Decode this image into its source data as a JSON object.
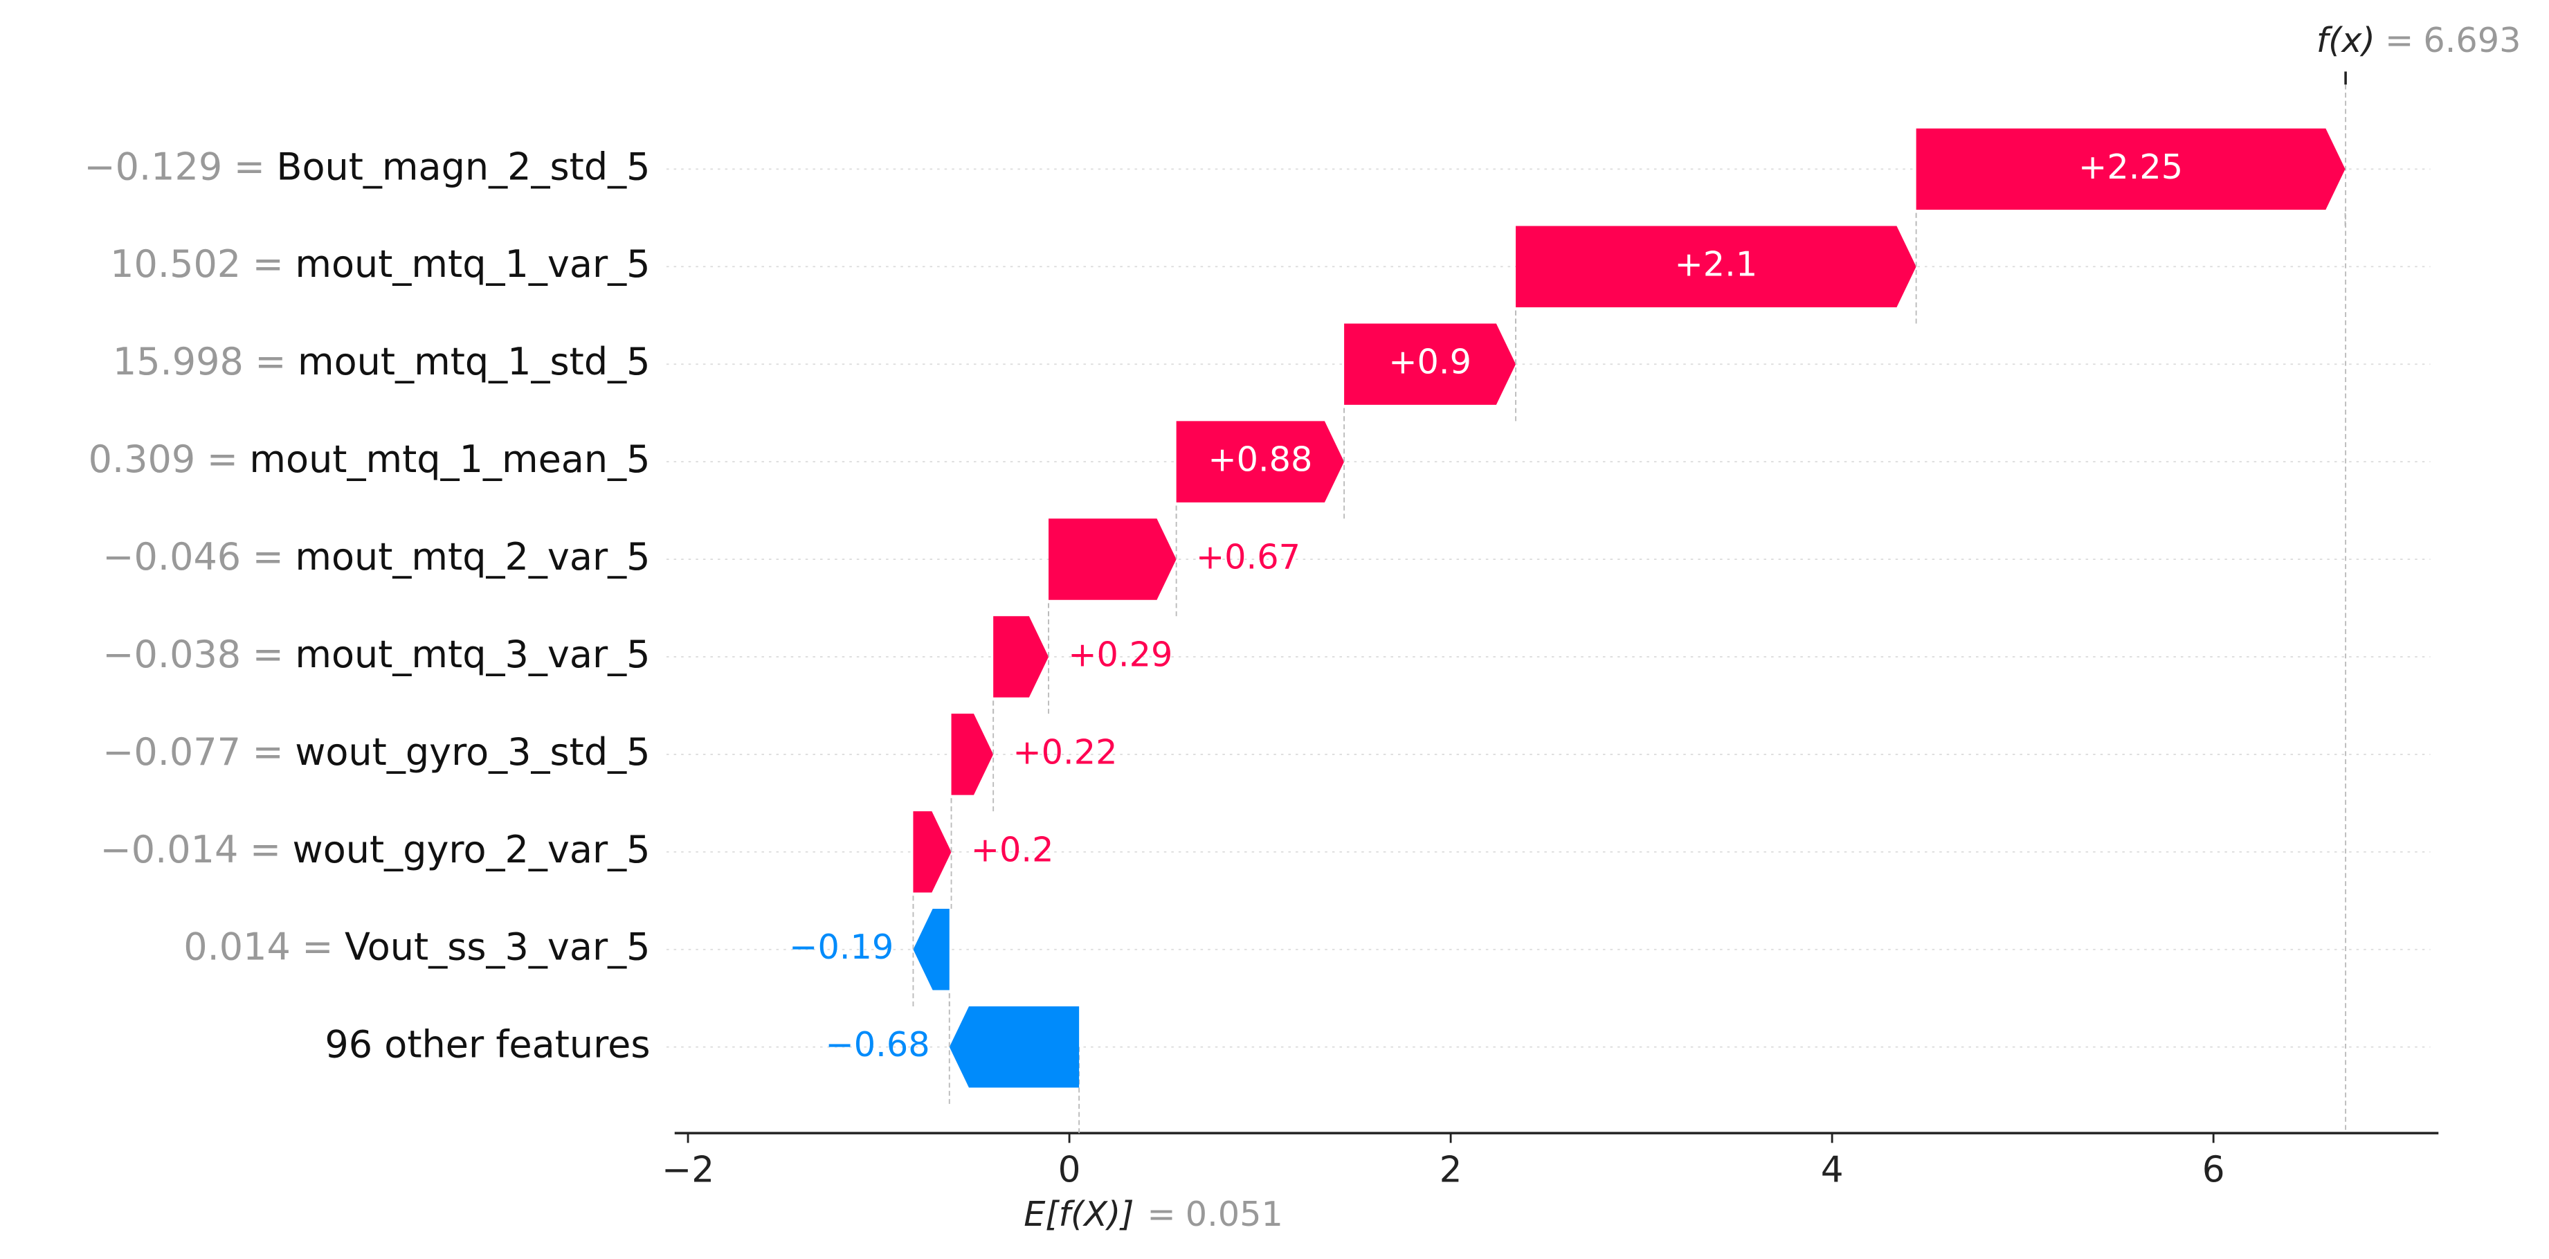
{
  "chart_data": {
    "type": "waterfall",
    "categories": [
      "Bout_magn_2_std_5",
      "mout_mtq_1_var_5",
      "mout_mtq_1_std_5",
      "mout_mtq_1_mean_5",
      "mout_mtq_2_var_5",
      "mout_mtq_3_var_5",
      "wout_gyro_3_std_5",
      "wout_gyro_2_var_5",
      "Vout_ss_3_var_5",
      "96 other features"
    ],
    "feature_values": [
      -0.129,
      10.502,
      15.998,
      0.309,
      -0.046,
      -0.038,
      -0.077,
      -0.014,
      0.014,
      null
    ],
    "feature_value_labels": [
      "−0.129",
      "10.502",
      "15.998",
      "0.309",
      "−0.046",
      "−0.038",
      "−0.077",
      "−0.014",
      "0.014",
      null
    ],
    "equals": "=",
    "values": [
      2.25,
      2.1,
      0.9,
      0.88,
      0.67,
      0.29,
      0.22,
      0.2,
      -0.19,
      -0.68
    ],
    "value_labels": [
      "+2.25",
      "+2.1",
      "+0.9",
      "+0.88",
      "+0.67",
      "+0.29",
      "+0.22",
      "+0.2",
      "−0.19",
      "−0.68"
    ],
    "base_value": 0.051,
    "base_label": "E[f(X)]",
    "output_value": 6.693,
    "output_label": "f(x)",
    "positive_color": "#ff0051",
    "negative_color": "#008bfb",
    "xlim": [
      -2.07,
      7.18
    ],
    "xticks": [
      {
        "value": -2,
        "label": "−2"
      },
      0,
      2,
      4,
      6
    ],
    "grid": true
  }
}
